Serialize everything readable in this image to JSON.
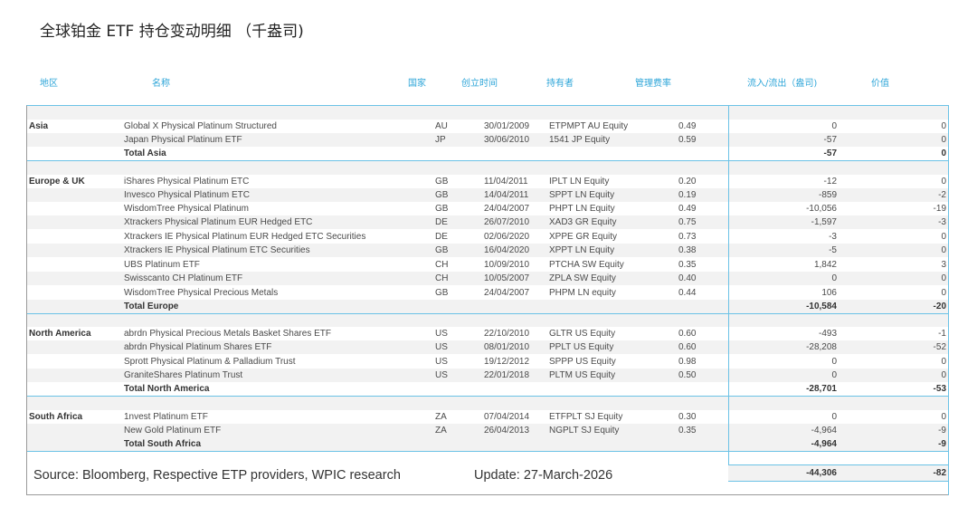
{
  "title": "全球铂金 ETF 持仓变动明细  （千盎司)",
  "headers": {
    "region": "地区",
    "name": "名称",
    "country": "国家",
    "date": "创立时间",
    "holder": "持有者",
    "fee": "管理费率",
    "flow": "流入/流出（盎司)",
    "value": "价值"
  },
  "rows": [
    {
      "region": "Asia",
      "name": "Global X Physical Platinum Structured",
      "country": "AU",
      "date": "30/01/2009",
      "holder": "ETPMPT AU Equity",
      "fee": "0.49",
      "flow": "0",
      "value": "0"
    },
    {
      "region": "",
      "name": "Japan Physical Platinum ETF",
      "country": "JP",
      "date": "30/06/2010",
      "holder": "1541 JP Equity",
      "fee": "0.59",
      "flow": "-57",
      "value": "0"
    },
    {
      "region": "",
      "name": "Total Asia",
      "country": "",
      "date": "",
      "holder": "",
      "fee": "",
      "flow": "-57",
      "value": "0"
    },
    {
      "region": "Europe & UK",
      "name": "iShares Physical Platinum ETC",
      "country": "GB",
      "date": "11/04/2011",
      "holder": "IPLT LN Equity",
      "fee": "0.20",
      "flow": "-12",
      "value": "0"
    },
    {
      "region": "",
      "name": "Invesco Physical Platinum ETC",
      "country": "GB",
      "date": "14/04/2011",
      "holder": "SPPT LN Equity",
      "fee": "0.19",
      "flow": "-859",
      "value": "-2"
    },
    {
      "region": "",
      "name": "WisdomTree Physical Platinum",
      "country": "GB",
      "date": "24/04/2007",
      "holder": "PHPT LN Equity",
      "fee": "0.49",
      "flow": "-10,056",
      "value": "-19"
    },
    {
      "region": "",
      "name": "Xtrackers Physical Platinum EUR Hedged ETC",
      "country": "DE",
      "date": "26/07/2010",
      "holder": "XAD3 GR Equity",
      "fee": "0.75",
      "flow": "-1,597",
      "value": "-3"
    },
    {
      "region": "",
      "name": "Xtrackers IE Physical Platinum EUR Hedged ETC Securities",
      "country": "DE",
      "date": "02/06/2020",
      "holder": "XPPE GR Equity",
      "fee": "0.73",
      "flow": "-3",
      "value": "0"
    },
    {
      "region": "",
      "name": "Xtrackers IE Physical Platinum ETC Securities",
      "country": "GB",
      "date": "16/04/2020",
      "holder": "XPPT LN Equity",
      "fee": "0.38",
      "flow": "-5",
      "value": "0"
    },
    {
      "region": "",
      "name": "UBS Platinum ETF",
      "country": "CH",
      "date": "10/09/2010",
      "holder": "PTCHA SW Equity",
      "fee": "0.35",
      "flow": "1,842",
      "value": "3"
    },
    {
      "region": "",
      "name": "Swisscanto CH Platinum ETF",
      "country": "CH",
      "date": "10/05/2007",
      "holder": "ZPLA SW Equity",
      "fee": "0.40",
      "flow": "0",
      "value": "0"
    },
    {
      "region": "",
      "name": "WisdomTree Physical Precious Metals",
      "country": "GB",
      "date": "24/04/2007",
      "holder": "PHPM LN equity",
      "fee": "0.44",
      "flow": "106",
      "value": "0"
    },
    {
      "region": "",
      "name": "Total Europe",
      "country": "",
      "date": "",
      "holder": "",
      "fee": "",
      "flow": "-10,584",
      "value": "-20"
    },
    {
      "region": "North America",
      "name": "abrdn Physical Precious Metals Basket Shares ETF",
      "country": "US",
      "date": "22/10/2010",
      "holder": "GLTR US Equity",
      "fee": "0.60",
      "flow": "-493",
      "value": "-1"
    },
    {
      "region": "",
      "name": "abrdn Physical Platinum Shares ETF",
      "country": "US",
      "date": "08/01/2010",
      "holder": "PPLT US Equity",
      "fee": "0.60",
      "flow": "-28,208",
      "value": "-52"
    },
    {
      "region": "",
      "name": "Sprott Physical Platinum & Palladium Trust",
      "country": "US",
      "date": "19/12/2012",
      "holder": "SPPP US Equity",
      "fee": "0.98",
      "flow": "0",
      "value": "0"
    },
    {
      "region": "",
      "name": "GraniteShares Platinum Trust",
      "country": "US",
      "date": "22/01/2018",
      "holder": "PLTM US Equity",
      "fee": "0.50",
      "flow": "0",
      "value": "0"
    },
    {
      "region": "",
      "name": "Total North America",
      "country": "",
      "date": "",
      "holder": "",
      "fee": "",
      "flow": "-28,701",
      "value": "-53"
    },
    {
      "region": "South Africa",
      "name": "1nvest Platinum ETF",
      "country": "ZA",
      "date": "07/04/2014",
      "holder": "ETFPLT SJ Equity",
      "fee": "0.30",
      "flow": "0",
      "value": "0"
    },
    {
      "region": "",
      "name": "New Gold Platinum ETF",
      "country": "ZA",
      "date": "26/04/2013",
      "holder": "NGPLT SJ Equity",
      "fee": "0.35",
      "flow": "-4,964",
      "value": "-9"
    },
    {
      "region": "",
      "name": "Total South Africa",
      "country": "",
      "date": "",
      "holder": "",
      "fee": "",
      "flow": "-4,964",
      "value": "-9"
    }
  ],
  "source": "Source: Bloomberg, Respective ETP providers, WPIC research",
  "update": "Update: 27-March-2026",
  "grand_total": {
    "flow": "-44,306",
    "value": "-82"
  },
  "colors": {
    "header_text": "#2da5d8",
    "rule": "#6bc2e6",
    "shade": "#f2f2f2"
  }
}
